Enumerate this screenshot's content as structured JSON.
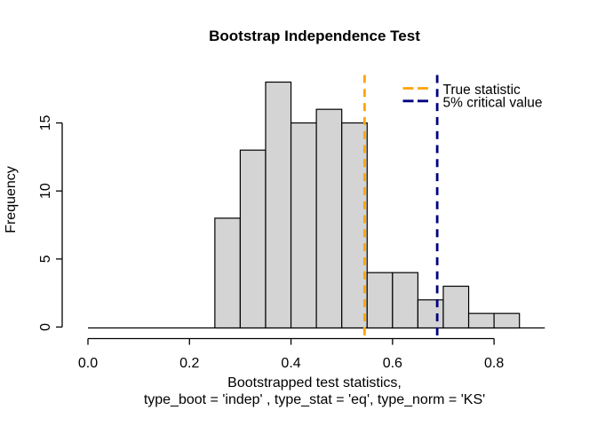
{
  "chart_data": {
    "type": "bar",
    "subtype": "histogram",
    "title": "Bootstrap Independence Test",
    "xlabel": [
      "Bootstrapped test statistics,",
      "type_boot = 'indep' , type_stat = 'eq', type_norm = 'KS'"
    ],
    "ylabel": "Frequency",
    "bins": {
      "start": 0.25,
      "width": 0.05,
      "counts": [
        8,
        13,
        18,
        15,
        16,
        15,
        4,
        4,
        2,
        3,
        1,
        1
      ]
    },
    "baseline_extent": [
      0.0,
      0.9
    ],
    "xlim": [
      0.0,
      0.9
    ],
    "ylim": [
      0,
      18
    ],
    "xticks": {
      "values": [
        0.0,
        0.2,
        0.4,
        0.6,
        0.8
      ],
      "labels": [
        "0.0",
        "0.2",
        "0.4",
        "0.6",
        "0.8"
      ]
    },
    "yticks": {
      "values": [
        0,
        5,
        10,
        15
      ],
      "labels": [
        "0",
        "5",
        "10",
        "15"
      ]
    },
    "grid": false,
    "bar_fill": "#D4D4D4",
    "bar_stroke": "#000000",
    "axis_color": "#000000",
    "vlines": [
      {
        "id": "true-statistic",
        "value": 0.545,
        "color": "#FFA500",
        "line_style": "dashed",
        "label": "True statistic"
      },
      {
        "id": "critical-value-5pct",
        "value": 0.688,
        "color": "#000080",
        "line_style": "dashed",
        "label": "5% critical value"
      }
    ],
    "legend": {
      "position": "top-right",
      "entries": [
        "True statistic",
        "5% critical value"
      ]
    }
  }
}
